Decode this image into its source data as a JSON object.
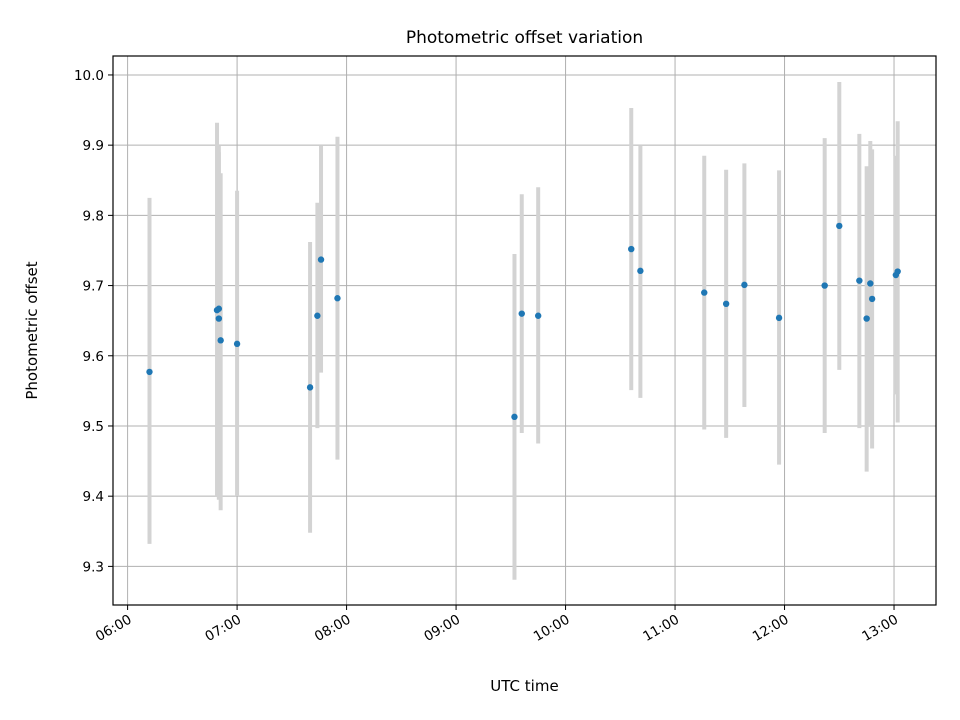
{
  "chart_data": {
    "type": "scatter",
    "title": "Photometric offset variation",
    "xlabel": "UTC time",
    "ylabel": "Photometric offset",
    "xlim": [
      "05:52",
      "13:23"
    ],
    "ylim": [
      9.245,
      10.027
    ],
    "x_ticks": [
      "06:00",
      "07:00",
      "08:00",
      "09:00",
      "10:00",
      "11:00",
      "12:00",
      "13:00"
    ],
    "y_ticks": [
      9.3,
      9.4,
      9.5,
      9.6,
      9.7,
      9.8,
      9.9,
      10.0
    ],
    "y_tick_labels": [
      "9.3",
      "9.4",
      "9.5",
      "9.6",
      "9.7",
      "9.8",
      "9.9",
      "10.0"
    ],
    "grid": true,
    "colors": {
      "point": "#1f77b4",
      "error_bar": "#d3d3d3",
      "grid": "#b0b0b0"
    },
    "series": [
      {
        "points": [
          {
            "x": "06:12",
            "y": 9.577,
            "ylow": 9.332,
            "yhigh": 9.825
          },
          {
            "x": "06:49",
            "y": 9.665,
            "ylow": 9.4,
            "yhigh": 9.932
          },
          {
            "x": "06:50",
            "y": 9.667,
            "ylow": 9.395,
            "yhigh": 9.9
          },
          {
            "x": "06:50",
            "y": 9.653,
            "ylow": 9.42,
            "yhigh": 9.89
          },
          {
            "x": "06:51",
            "y": 9.622,
            "ylow": 9.38,
            "yhigh": 9.86
          },
          {
            "x": "07:00",
            "y": 9.617,
            "ylow": 9.4,
            "yhigh": 9.835
          },
          {
            "x": "07:40",
            "y": 9.555,
            "ylow": 9.348,
            "yhigh": 9.762
          },
          {
            "x": "07:44",
            "y": 9.657,
            "ylow": 9.497,
            "yhigh": 9.818
          },
          {
            "x": "07:46",
            "y": 9.737,
            "ylow": 9.576,
            "yhigh": 9.9
          },
          {
            "x": "07:55",
            "y": 9.682,
            "ylow": 9.452,
            "yhigh": 9.912
          },
          {
            "x": "09:32",
            "y": 9.513,
            "ylow": 9.281,
            "yhigh": 9.745
          },
          {
            "x": "09:36",
            "y": 9.66,
            "ylow": 9.49,
            "yhigh": 9.83
          },
          {
            "x": "09:45",
            "y": 9.657,
            "ylow": 9.475,
            "yhigh": 9.84
          },
          {
            "x": "10:36",
            "y": 9.752,
            "ylow": 9.551,
            "yhigh": 9.953
          },
          {
            "x": "10:41",
            "y": 9.721,
            "ylow": 9.54,
            "yhigh": 9.9
          },
          {
            "x": "11:16",
            "y": 9.69,
            "ylow": 9.495,
            "yhigh": 9.885
          },
          {
            "x": "11:28",
            "y": 9.674,
            "ylow": 9.483,
            "yhigh": 9.865
          },
          {
            "x": "11:38",
            "y": 9.701,
            "ylow": 9.527,
            "yhigh": 9.874
          },
          {
            "x": "11:57",
            "y": 9.654,
            "ylow": 9.445,
            "yhigh": 9.864
          },
          {
            "x": "12:22",
            "y": 9.7,
            "ylow": 9.49,
            "yhigh": 9.91
          },
          {
            "x": "12:30",
            "y": 9.785,
            "ylow": 9.58,
            "yhigh": 9.99
          },
          {
            "x": "12:41",
            "y": 9.707,
            "ylow": 9.497,
            "yhigh": 9.916
          },
          {
            "x": "12:45",
            "y": 9.653,
            "ylow": 9.435,
            "yhigh": 9.87
          },
          {
            "x": "12:47",
            "y": 9.703,
            "ylow": 9.5,
            "yhigh": 9.906
          },
          {
            "x": "12:48",
            "y": 9.681,
            "ylow": 9.468,
            "yhigh": 9.894
          },
          {
            "x": "13:01",
            "y": 9.715,
            "ylow": 9.545,
            "yhigh": 9.885
          },
          {
            "x": "13:02",
            "y": 9.72,
            "ylow": 9.505,
            "yhigh": 9.934
          }
        ]
      }
    ]
  }
}
